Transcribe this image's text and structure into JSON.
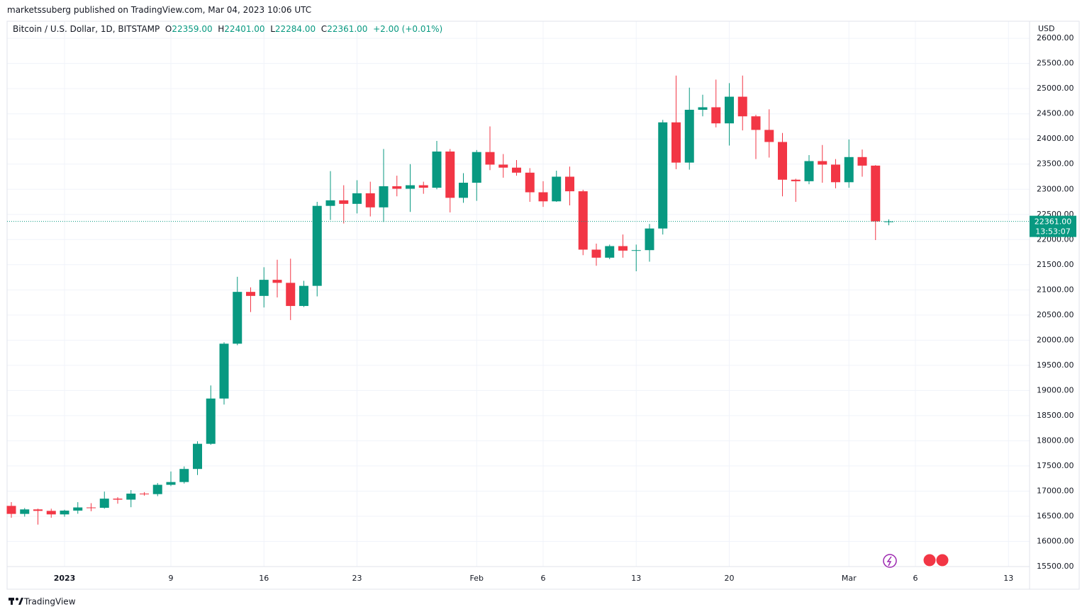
{
  "header": {
    "byline": "marketssuberg published on TradingView.com, Mar 04, 2023 10:06 UTC",
    "symbol": "Bitcoin / U.S. Dollar, 1D, BITSTAMP",
    "o": "O",
    "open": "22359.00",
    "h": "H",
    "high": "22401.00",
    "l": "L",
    "low": "22284.00",
    "c": "C",
    "close": "22361.00",
    "change": "+2.00 (+0.01%)"
  },
  "footer": {
    "brand": "TradingView"
  },
  "chart_data": {
    "type": "candlestick",
    "y_axis_label": "USD",
    "categories": [
      null,
      null,
      null,
      null,
      "2023",
      null,
      null,
      null,
      null,
      null,
      null,
      null,
      "9",
      null,
      null,
      null,
      null,
      null,
      null,
      "16",
      null,
      null,
      null,
      null,
      null,
      null,
      "23",
      null,
      null,
      null,
      null,
      null,
      null,
      null,
      null,
      "Feb",
      null,
      null,
      null,
      null,
      "6",
      null,
      null,
      null,
      null,
      null,
      null,
      "13",
      null,
      null,
      null,
      null,
      null,
      null,
      "20",
      null,
      null,
      null,
      null,
      null,
      null,
      null,
      null,
      "Mar",
      null,
      null,
      null,
      null,
      "6",
      null,
      null,
      null,
      null,
      null,
      null,
      "13",
      null
    ],
    "open": [
      16706,
      16547,
      16636,
      16607,
      16537,
      16612,
      16675,
      16668,
      16850,
      16830,
      16950,
      16940,
      17125,
      17180,
      17440,
      17940,
      18840,
      19930,
      20960,
      20880,
      21200,
      21140,
      20680,
      21080,
      22670,
      22780,
      22710,
      22920,
      22640,
      23060,
      23010,
      23080,
      23030,
      23750,
      22830,
      23130,
      23740,
      23490,
      23430,
      23330,
      22940,
      22760,
      23250,
      22960,
      21800,
      21640,
      21870,
      21780,
      21790,
      22220,
      24330,
      23530,
      24580,
      24630,
      24310,
      24840,
      24450,
      24180,
      23940,
      23190,
      23160,
      23560,
      23490,
      23140,
      23640,
      23470,
      22359,
      null,
      null,
      null,
      null,
      null,
      null,
      null,
      null,
      null,
      null
    ],
    "high": [
      16781,
      16663,
      16650,
      16650,
      16630,
      16780,
      16760,
      16990,
      16880,
      17020,
      16980,
      17160,
      17390,
      17490,
      17990,
      19100,
      19960,
      21260,
      21050,
      21450,
      21600,
      21620,
      21180,
      22750,
      23360,
      23080,
      23180,
      23150,
      23800,
      23270,
      23500,
      23150,
      23960,
      23800,
      23320,
      23780,
      24250,
      23700,
      23580,
      23420,
      23160,
      23370,
      23450,
      22990,
      21920,
      21900,
      22100,
      21900,
      22310,
      24380,
      25260,
      25020,
      24880,
      25180,
      25110,
      25260,
      24480,
      24590,
      24120,
      23210,
      23680,
      23880,
      23600,
      23990,
      23790,
      23480,
      22401,
      null,
      null,
      null,
      null,
      null,
      null,
      null,
      null,
      null,
      null
    ],
    "low": [
      16470,
      16493,
      16334,
      16470,
      16490,
      16550,
      16600,
      16650,
      16750,
      16680,
      16910,
      16900,
      17100,
      17150,
      17320,
      17920,
      18720,
      19900,
      20560,
      20650,
      20850,
      20400,
      20660,
      20870,
      22390,
      22320,
      22520,
      22460,
      22350,
      22860,
      22550,
      22910,
      23000,
      22540,
      22730,
      22770,
      23380,
      23230,
      23270,
      22750,
      22650,
      22750,
      22680,
      21690,
      21480,
      21610,
      21640,
      21370,
      21560,
      22100,
      23400,
      23390,
      24450,
      24230,
      23870,
      24170,
      23600,
      23630,
      22860,
      22750,
      23100,
      23130,
      23020,
      23030,
      23250,
      21990,
      22284,
      null,
      null,
      null,
      null,
      null,
      null,
      null,
      null,
      null,
      null
    ],
    "close": [
      16547,
      16636,
      16607,
      16537,
      16612,
      16675,
      16668,
      16850,
      16830,
      16950,
      16940,
      17125,
      17180,
      17440,
      17940,
      18840,
      19930,
      20960,
      20880,
      21200,
      21140,
      20680,
      21080,
      22670,
      22780,
      22710,
      22920,
      22640,
      23060,
      23010,
      23080,
      23030,
      23750,
      22830,
      23130,
      23740,
      23490,
      23430,
      23330,
      22940,
      22760,
      23250,
      22960,
      21800,
      21640,
      21870,
      21780,
      21790,
      22220,
      24330,
      23530,
      24580,
      24630,
      24310,
      24840,
      24450,
      24180,
      23940,
      23190,
      23160,
      23560,
      23490,
      23140,
      23640,
      23470,
      22360,
      22361,
      null,
      null,
      null,
      null,
      null,
      null,
      null,
      null,
      null,
      null
    ],
    "up_color": "#089981",
    "down_color": "#f23645",
    "price_label": {
      "value": 22361,
      "label": "22361.00"
    },
    "countdown": "13:53:07",
    "ylim": [
      15500,
      26340
    ],
    "yticks": [
      {
        "value": 15500,
        "label": "15500.00"
      },
      {
        "value": 16000,
        "label": "16000.00"
      },
      {
        "value": 16500,
        "label": "16500.00"
      },
      {
        "value": 17000,
        "label": "17000.00"
      },
      {
        "value": 17500,
        "label": "17500.00"
      },
      {
        "value": 18000,
        "label": "18000.00"
      },
      {
        "value": 18500,
        "label": "18500.00"
      },
      {
        "value": 19000,
        "label": "19000.00"
      },
      {
        "value": 19500,
        "label": "19500.00"
      },
      {
        "value": 20000,
        "label": "20000.00"
      },
      {
        "value": 20500,
        "label": "20500.00"
      },
      {
        "value": 21000,
        "label": "21000.00"
      },
      {
        "value": 21500,
        "label": "21500.00"
      },
      {
        "value": 22000,
        "label": "22000.00"
      },
      {
        "value": 22500,
        "label": "22500.00"
      },
      {
        "value": 23000,
        "label": "23000.00"
      },
      {
        "value": 23500,
        "label": "23500.00"
      },
      {
        "value": 24000,
        "label": "24000.00"
      },
      {
        "value": 24500,
        "label": "24500.00"
      },
      {
        "value": 25000,
        "label": "25000.00"
      },
      {
        "value": 25500,
        "label": "25500.00"
      },
      {
        "value": 26000,
        "label": "26000.00"
      }
    ],
    "grid": true
  }
}
